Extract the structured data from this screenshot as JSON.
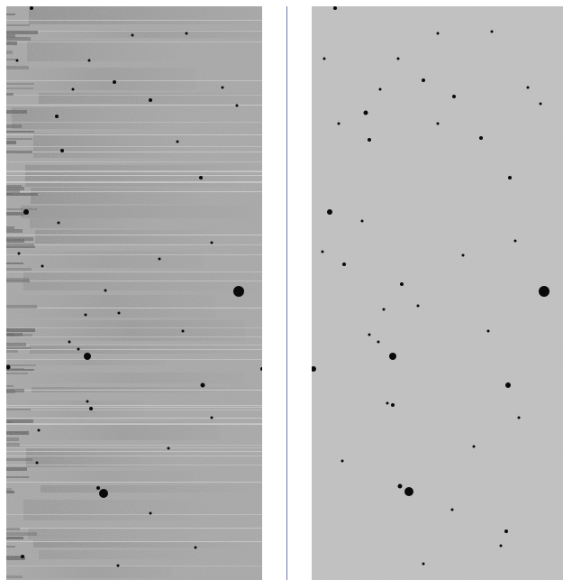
{
  "figure": {
    "left_panel": {
      "content": "raw-frame-with-horizontal-streak-artifacts"
    },
    "right_panel": {
      "content": "corrected-frame-uniform-background"
    }
  },
  "colors": {
    "page_background": "#ffffff",
    "left_panel_base": "#a3a3a3",
    "streak_dark": "#7c7c7c",
    "streak_light": "#d2d2d2",
    "right_panel_base": "#c2c2c2",
    "star": "#0a0a0a",
    "divider": "#6f78b2"
  }
}
